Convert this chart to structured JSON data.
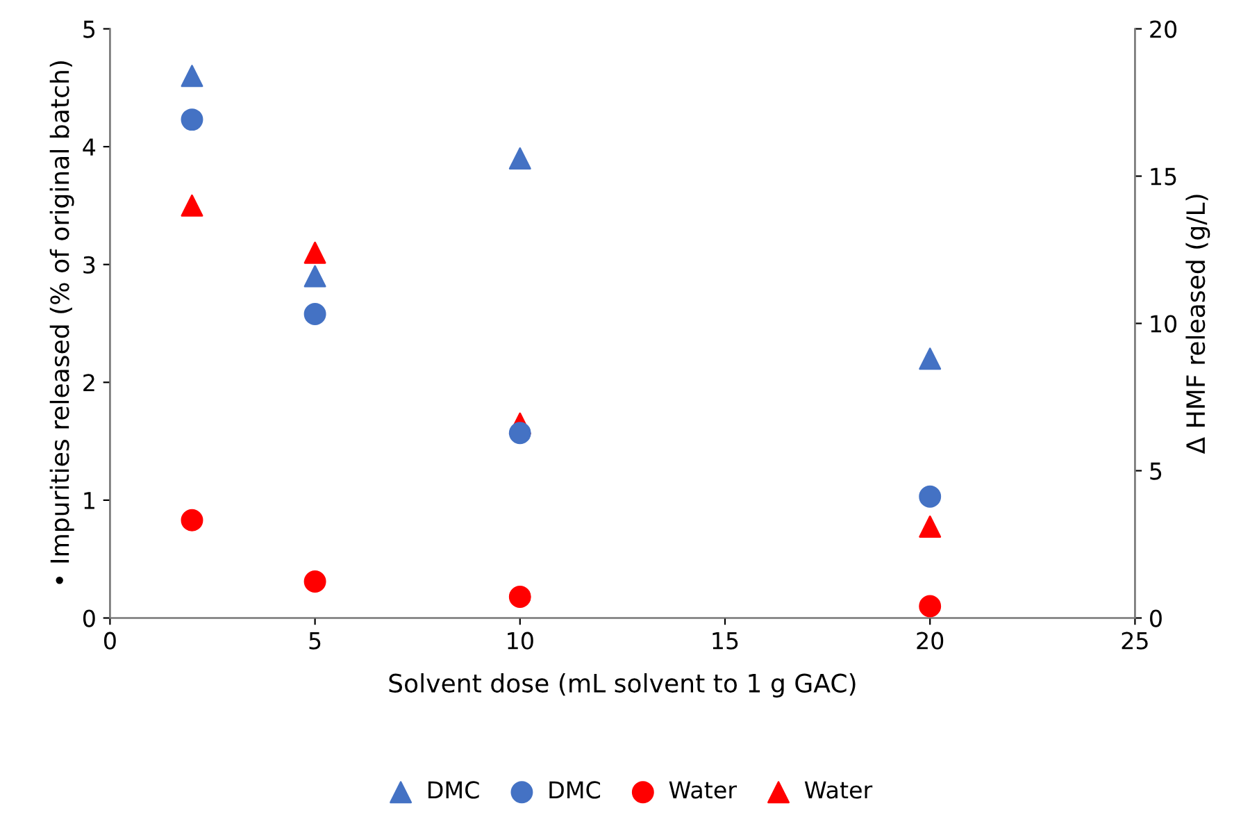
{
  "chart_data": {
    "type": "scatter",
    "xlabel": "Solvent dose (mL solvent to 1 g GAC)",
    "ylabel": "• Impurities released (% of original batch)",
    "y2label": "Δ HMF released (g/L)",
    "x": [
      2,
      5,
      10,
      20
    ],
    "series": [
      {
        "name": "DMC",
        "color": "#4472c4",
        "marker": "triangle",
        "axis": "y2",
        "values": [
          18.4,
          11.6,
          15.6,
          8.8
        ]
      },
      {
        "name": "DMC",
        "color": "#4472c4",
        "marker": "circle",
        "values": [
          4.23,
          2.58,
          1.57,
          1.03
        ]
      },
      {
        "name": "Water",
        "color": "#ff0000",
        "marker": "circle",
        "values": [
          0.83,
          0.31,
          0.18,
          0.1
        ]
      },
      {
        "name": "Water",
        "color": "#ff0000",
        "marker": "triangle",
        "axis": "y2",
        "values": [
          14.0,
          12.4,
          6.6,
          3.1
        ]
      }
    ],
    "xlim": [
      0,
      25
    ],
    "xticks": [
      0,
      5,
      10,
      15,
      20,
      25
    ],
    "ylim": [
      0,
      5
    ],
    "yticks": [
      0,
      1,
      2,
      3,
      4,
      5
    ],
    "y2lim": [
      0,
      20
    ],
    "y2ticks": [
      0,
      5,
      10,
      15,
      20
    ],
    "grid": false,
    "legend": "bottom"
  }
}
